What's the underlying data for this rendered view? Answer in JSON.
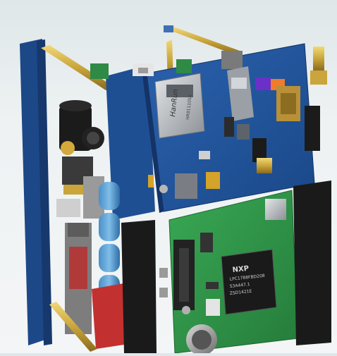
{
  "scene": {
    "description_colors": {
      "background": "#e8eef0",
      "board_blue": "#1f4f93",
      "board_blue_dark": "#163a72",
      "board_green": "#2f9a48",
      "brass": "#c9a53b",
      "connector_black": "#1a1a1a"
    }
  },
  "labels": {
    "ethernet_brand": "HanRun",
    "ethernet_part": "HR911105A",
    "chip_logo": "NXP",
    "chip_line1": "LPC1788FBD208",
    "chip_line2": "S3A447.1",
    "chip_line3": "ZSD1421E"
  }
}
